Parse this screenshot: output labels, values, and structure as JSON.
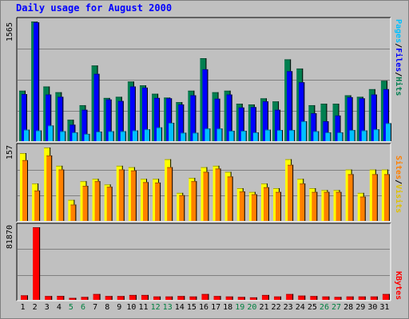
{
  "page": {
    "title": "Daily usage for August 2000"
  },
  "colors": {
    "hits": "#007f50",
    "files": "#0000ff",
    "pages": "#00c0ff",
    "visits": "#ffff00",
    "sites": "#ff8000",
    "kbytes": "#ff0000",
    "panel_bg": "#c0c0c0",
    "weekday_label": "#000000",
    "weekend_label": "#008040"
  },
  "chart_data": [
    {
      "type": "bar",
      "panel": "hits-files-pages",
      "ymax_label": "1565",
      "ylim": [
        0,
        1565
      ],
      "legend": {
        "pages": "Pages",
        "files": "Files",
        "hits": "Hits",
        "sep": "/"
      },
      "categories": [
        "1",
        "2",
        "3",
        "4",
        "5",
        "6",
        "7",
        "8",
        "9",
        "10",
        "11",
        "12",
        "13",
        "14",
        "15",
        "16",
        "17",
        "18",
        "19",
        "20",
        "21",
        "22",
        "23",
        "24",
        "25",
        "26",
        "27",
        "28",
        "29",
        "30",
        "31"
      ],
      "series": [
        {
          "name": "Hits",
          "values": [
            660,
            1565,
            715,
            640,
            280,
            470,
            990,
            565,
            580,
            780,
            730,
            620,
            570,
            510,
            660,
            1085,
            640,
            660,
            490,
            480,
            560,
            520,
            1070,
            950,
            470,
            490,
            490,
            600,
            580,
            680,
            790
          ]
        },
        {
          "name": "Files",
          "values": [
            615,
            1555,
            610,
            580,
            215,
            410,
            880,
            545,
            525,
            715,
            700,
            565,
            560,
            480,
            600,
            940,
            555,
            610,
            440,
            445,
            520,
            410,
            915,
            770,
            365,
            260,
            335,
            575,
            560,
            610,
            680
          ]
        },
        {
          "name": "Pages",
          "values": [
            150,
            140,
            205,
            130,
            115,
            95,
            125,
            130,
            130,
            140,
            155,
            180,
            240,
            110,
            110,
            165,
            165,
            135,
            135,
            115,
            150,
            145,
            145,
            260,
            130,
            115,
            115,
            145,
            140,
            155,
            235
          ]
        }
      ]
    },
    {
      "type": "bar",
      "panel": "visits-sites",
      "ymax_label": "157",
      "ylim": [
        0,
        157
      ],
      "legend": {
        "sites": "Sites",
        "visits": "Visits",
        "sep": "/"
      },
      "categories": [
        "1",
        "2",
        "3",
        "4",
        "5",
        "6",
        "7",
        "8",
        "9",
        "10",
        "11",
        "12",
        "13",
        "14",
        "15",
        "16",
        "17",
        "18",
        "19",
        "20",
        "21",
        "22",
        "23",
        "24",
        "25",
        "26",
        "27",
        "28",
        "29",
        "30",
        "31"
      ],
      "series": [
        {
          "name": "Visits",
          "values": [
            145,
            80,
            157,
            118,
            45,
            85,
            90,
            78,
            118,
            115,
            90,
            90,
            132,
            60,
            92,
            115,
            118,
            105,
            70,
            62,
            80,
            70,
            132,
            90,
            70,
            66,
            66,
            110,
            60,
            110,
            110
          ]
        },
        {
          "name": "Sites",
          "values": [
            130,
            65,
            140,
            110,
            35,
            75,
            85,
            73,
            110,
            108,
            83,
            82,
            115,
            55,
            85,
            105,
            112,
            95,
            63,
            57,
            72,
            62,
            120,
            80,
            62,
            62,
            62,
            100,
            52,
            100,
            100
          ]
        }
      ]
    },
    {
      "type": "bar",
      "panel": "kbytes",
      "ymax_label": "81870",
      "ylim": [
        0,
        81870
      ],
      "legend": {
        "kbytes": "KBytes"
      },
      "categories": [
        "1",
        "2",
        "3",
        "4",
        "5",
        "6",
        "7",
        "8",
        "9",
        "10",
        "11",
        "12",
        "13",
        "14",
        "15",
        "16",
        "17",
        "18",
        "19",
        "20",
        "21",
        "22",
        "23",
        "24",
        "25",
        "26",
        "27",
        "28",
        "29",
        "30",
        "31"
      ],
      "weekend_days": [
        "5",
        "6",
        "12",
        "13",
        "19",
        "20",
        "26",
        "27"
      ],
      "series": [
        {
          "name": "KBytes",
          "values": [
            5100,
            81870,
            4300,
            4500,
            2200,
            3300,
            6600,
            4300,
            4300,
            5500,
            5500,
            3800,
            3800,
            4300,
            3800,
            6600,
            4300,
            3800,
            3300,
            2800,
            5500,
            3800,
            6600,
            4800,
            4300,
            3800,
            3300,
            3800,
            3800,
            3800,
            6600
          ]
        }
      ]
    }
  ]
}
